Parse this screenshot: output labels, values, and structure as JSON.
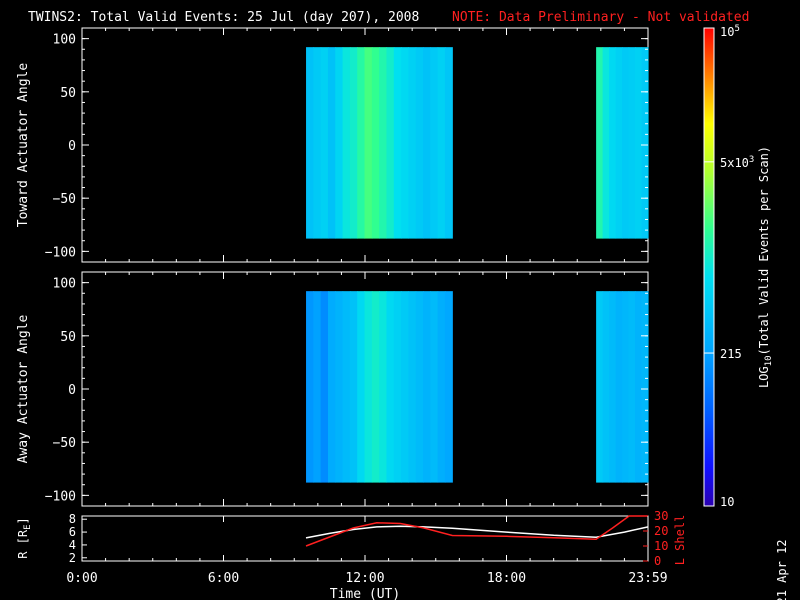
{
  "title": "TWINS2: Total Valid Events: 25 Jul (day 207), 2008",
  "note": "NOTE: Data Preliminary - Not validated",
  "side_date": "21 Apr 12",
  "chart_data": [
    {
      "type": "heatmap",
      "ylabel": "Toward Actuator Angle",
      "xlim": [
        0,
        24
      ],
      "ylim": [
        -110,
        110
      ],
      "yticks": [
        "100",
        "50",
        "0",
        "-50",
        "-100"
      ],
      "y_extent": [
        -88,
        92
      ],
      "blocks": [
        {
          "start": 9.5,
          "end": 15.7,
          "intensity": [
            0.4,
            0.42,
            0.44,
            0.4,
            0.45,
            0.5,
            0.52,
            0.56,
            0.6,
            0.58,
            0.55,
            0.52,
            0.48,
            0.46,
            0.44,
            0.42,
            0.4,
            0.42,
            0.44,
            0.41
          ]
        },
        {
          "start": 21.8,
          "end": 24.0,
          "intensity": [
            0.55,
            0.5,
            0.46,
            0.44,
            0.42,
            0.43,
            0.44,
            0.42
          ]
        }
      ]
    },
    {
      "type": "heatmap",
      "ylabel": "Away Actuator Angle",
      "xlim": [
        0,
        24
      ],
      "ylim": [
        -110,
        110
      ],
      "yticks": [
        "100",
        "50",
        "0",
        "-50",
        "-100"
      ],
      "y_extent": [
        -88,
        92
      ],
      "blocks": [
        {
          "start": 9.5,
          "end": 15.7,
          "intensity": [
            0.3,
            0.32,
            0.28,
            0.34,
            0.36,
            0.38,
            0.4,
            0.46,
            0.5,
            0.52,
            0.5,
            0.46,
            0.44,
            0.42,
            0.4,
            0.38,
            0.36,
            0.38,
            0.35,
            0.33
          ]
        },
        {
          "start": 21.8,
          "end": 24.0,
          "intensity": [
            0.42,
            0.4,
            0.38,
            0.36,
            0.37,
            0.38,
            0.36,
            0.37
          ]
        }
      ]
    },
    {
      "type": "line",
      "xlabel": "Time (UT)",
      "xticks": [
        "0:00",
        "6:00",
        "12:00",
        "18:00",
        "23:59"
      ],
      "ylabel": "R [R_E]",
      "yticks": [
        "8",
        "6",
        "4",
        "2"
      ],
      "ylim": [
        1.5,
        8.5
      ],
      "y2label": "L Shell",
      "y2ticks": [
        "30",
        "20",
        "10",
        "0"
      ],
      "y2lim": [
        0,
        30
      ],
      "series": [
        {
          "color": "#ffffff",
          "x": [
            9.5,
            10.5,
            11.5,
            12.5,
            13.5,
            14.5,
            15.7,
            18.0,
            20.0,
            21.8,
            23.0,
            24.0
          ],
          "y": [
            5.1,
            5.8,
            6.4,
            6.8,
            6.9,
            6.8,
            6.6,
            6.0,
            5.5,
            5.2,
            6.0,
            6.8
          ]
        },
        {
          "color": "#ff2020",
          "axis": "right",
          "x": [
            9.5,
            10.5,
            11.5,
            12.5,
            13.5,
            14.5,
            15.7,
            18.0,
            20.0,
            21.8,
            22.5,
            23.2,
            24.0
          ],
          "y": [
            10.0,
            16.0,
            22.0,
            25.5,
            25.0,
            22.0,
            17.0,
            16.5,
            15.5,
            14.5,
            22.0,
            30.0,
            30.0
          ]
        }
      ]
    }
  ],
  "colorbar": {
    "label": "LOG10(Total Valid Events per Scan)",
    "label_base": "LOG",
    "label_sub": "10",
    "label_rest": "(Total Valid Events per Scan)",
    "ticks": [
      {
        "text": "10",
        "frac": 0.0
      },
      {
        "text": "215",
        "frac": 0.32
      },
      {
        "text": "5x10",
        "sup": "3",
        "frac": 0.72
      },
      {
        "text": "10",
        "sup": "5",
        "frac": 1.0
      }
    ]
  }
}
